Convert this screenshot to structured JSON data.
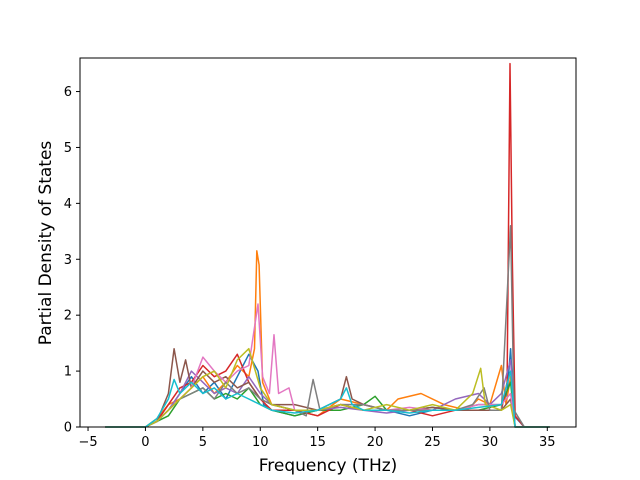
{
  "chart_data": {
    "type": "line",
    "title": "",
    "xlabel": "Frequency (THz)",
    "ylabel": "Partial Density of States",
    "xlim": [
      -5.7,
      37.5
    ],
    "ylim": [
      0,
      6.6
    ],
    "xticks": [
      -5,
      0,
      5,
      10,
      15,
      20,
      25,
      30,
      35
    ],
    "yticks": [
      0,
      1,
      2,
      3,
      4,
      5,
      6
    ],
    "xtick_labels": [
      "−5",
      "0",
      "5",
      "10",
      "15",
      "20",
      "25",
      "30",
      "35"
    ],
    "ytick_labels": [
      "0",
      "1",
      "2",
      "3",
      "4",
      "5",
      "6"
    ],
    "grid": false,
    "legend": "none",
    "series": [
      {
        "color": "#1f77b4",
        "points": [
          [
            -3.5,
            0
          ],
          [
            0,
            0
          ],
          [
            1,
            0.1
          ],
          [
            2,
            0.3
          ],
          [
            3,
            0.6
          ],
          [
            4,
            0.9
          ],
          [
            5,
            0.6
          ],
          [
            6,
            0.8
          ],
          [
            7,
            0.5
          ],
          [
            8,
            0.9
          ],
          [
            9,
            1.3
          ],
          [
            9.8,
            1.0
          ],
          [
            10.3,
            0.4
          ],
          [
            11,
            0.3
          ],
          [
            13,
            0.2
          ],
          [
            15,
            0.3
          ],
          [
            17,
            0.4
          ],
          [
            19,
            0.3
          ],
          [
            21,
            0.3
          ],
          [
            23,
            0.2
          ],
          [
            25,
            0.3
          ],
          [
            27,
            0.3
          ],
          [
            29,
            0.4
          ],
          [
            31,
            0.4
          ],
          [
            31.5,
            0.6
          ],
          [
            31.8,
            1.4
          ],
          [
            32.1,
            0.2
          ],
          [
            33,
            0
          ],
          [
            35.2,
            0
          ]
        ]
      },
      {
        "color": "#ff7f0e",
        "points": [
          [
            -3.5,
            0
          ],
          [
            0,
            0
          ],
          [
            1,
            0.15
          ],
          [
            2,
            0.4
          ],
          [
            3,
            0.5
          ],
          [
            4,
            0.7
          ],
          [
            5,
            0.9
          ],
          [
            6,
            0.6
          ],
          [
            7,
            0.8
          ],
          [
            8,
            1.1
          ],
          [
            9,
            0.9
          ],
          [
            9.5,
            1.4
          ],
          [
            9.7,
            3.15
          ],
          [
            9.9,
            2.9
          ],
          [
            10.2,
            0.8
          ],
          [
            11,
            0.4
          ],
          [
            13,
            0.3
          ],
          [
            15,
            0.2
          ],
          [
            17,
            0.5
          ],
          [
            19,
            0.4
          ],
          [
            21,
            0.3
          ],
          [
            22,
            0.5
          ],
          [
            24,
            0.6
          ],
          [
            26,
            0.4
          ],
          [
            28,
            0.3
          ],
          [
            29,
            0.5
          ],
          [
            30,
            0.4
          ],
          [
            31,
            1.1
          ],
          [
            31.4,
            0.4
          ],
          [
            31.8,
            0.9
          ],
          [
            32.2,
            0
          ],
          [
            33,
            0
          ],
          [
            35.2,
            0
          ]
        ]
      },
      {
        "color": "#2ca02c",
        "points": [
          [
            -3.5,
            0
          ],
          [
            0,
            0
          ],
          [
            1,
            0.1
          ],
          [
            2,
            0.2
          ],
          [
            3,
            0.5
          ],
          [
            4,
            0.6
          ],
          [
            5,
            0.7
          ],
          [
            6,
            0.5
          ],
          [
            7,
            0.6
          ],
          [
            8,
            0.5
          ],
          [
            9,
            0.7
          ],
          [
            10,
            0.4
          ],
          [
            11,
            0.3
          ],
          [
            13,
            0.2
          ],
          [
            15,
            0.3
          ],
          [
            17,
            0.3
          ],
          [
            19,
            0.4
          ],
          [
            20,
            0.55
          ],
          [
            21,
            0.3
          ],
          [
            23,
            0.3
          ],
          [
            25,
            0.35
          ],
          [
            27,
            0.3
          ],
          [
            29,
            0.3
          ],
          [
            31,
            0.4
          ],
          [
            31.8,
            0.8
          ],
          [
            32.2,
            0
          ],
          [
            35.2,
            0
          ]
        ]
      },
      {
        "color": "#d62728",
        "points": [
          [
            -3.5,
            0
          ],
          [
            0,
            0
          ],
          [
            1,
            0.1
          ],
          [
            2,
            0.4
          ],
          [
            3,
            0.7
          ],
          [
            4,
            0.8
          ],
          [
            5,
            1.1
          ],
          [
            6,
            0.9
          ],
          [
            7,
            1.0
          ],
          [
            8,
            1.3
          ],
          [
            9,
            0.8
          ],
          [
            10,
            0.5
          ],
          [
            11,
            0.3
          ],
          [
            13,
            0.3
          ],
          [
            15,
            0.2
          ],
          [
            17,
            0.4
          ],
          [
            19,
            0.3
          ],
          [
            21,
            0.3
          ],
          [
            23,
            0.3
          ],
          [
            25,
            0.2
          ],
          [
            27,
            0.3
          ],
          [
            29,
            0.3
          ],
          [
            31,
            0.3
          ],
          [
            31.5,
            0.8
          ],
          [
            31.75,
            6.5
          ],
          [
            31.95,
            3.0
          ],
          [
            32.2,
            0.2
          ],
          [
            33,
            0
          ],
          [
            35.2,
            0
          ]
        ]
      },
      {
        "color": "#9467bd",
        "points": [
          [
            -3.5,
            0
          ],
          [
            0,
            0
          ],
          [
            1,
            0.1
          ],
          [
            2,
            0.3
          ],
          [
            3,
            0.6
          ],
          [
            4,
            1.0
          ],
          [
            5,
            0.8
          ],
          [
            6,
            0.6
          ],
          [
            7,
            0.7
          ],
          [
            8,
            0.6
          ],
          [
            9,
            0.9
          ],
          [
            10,
            0.6
          ],
          [
            11,
            0.4
          ],
          [
            13,
            0.3
          ],
          [
            15,
            0.3
          ],
          [
            17,
            0.35
          ],
          [
            19,
            0.3
          ],
          [
            21,
            0.25
          ],
          [
            23,
            0.3
          ],
          [
            25,
            0.3
          ],
          [
            27,
            0.5
          ],
          [
            29,
            0.6
          ],
          [
            30,
            0.4
          ],
          [
            31,
            0.6
          ],
          [
            31.8,
            1.2
          ],
          [
            32.2,
            0
          ],
          [
            35.2,
            0
          ]
        ]
      },
      {
        "color": "#8c564b",
        "points": [
          [
            -3.5,
            0
          ],
          [
            0,
            0
          ],
          [
            1,
            0.1
          ],
          [
            2,
            0.6
          ],
          [
            2.5,
            1.4
          ],
          [
            3,
            0.8
          ],
          [
            3.5,
            1.2
          ],
          [
            4,
            0.7
          ],
          [
            5,
            1.0
          ],
          [
            6,
            0.8
          ],
          [
            7,
            0.9
          ],
          [
            8,
            0.7
          ],
          [
            9,
            0.8
          ],
          [
            10,
            0.5
          ],
          [
            11,
            0.4
          ],
          [
            13,
            0.4
          ],
          [
            15,
            0.3
          ],
          [
            17,
            0.5
          ],
          [
            17.5,
            0.9
          ],
          [
            18,
            0.5
          ],
          [
            19,
            0.4
          ],
          [
            21,
            0.3
          ],
          [
            23,
            0.3
          ],
          [
            25,
            0.35
          ],
          [
            27,
            0.3
          ],
          [
            29,
            0.3
          ],
          [
            31,
            0.3
          ],
          [
            31.8,
            0.5
          ],
          [
            32.2,
            0
          ],
          [
            35.2,
            0
          ]
        ]
      },
      {
        "color": "#e377c2",
        "points": [
          [
            -3.5,
            0
          ],
          [
            0,
            0
          ],
          [
            1,
            0.1
          ],
          [
            2,
            0.3
          ],
          [
            3,
            0.5
          ],
          [
            4,
            0.7
          ],
          [
            5,
            1.25
          ],
          [
            6,
            1.0
          ],
          [
            7,
            0.8
          ],
          [
            8,
            1.0
          ],
          [
            9,
            1.1
          ],
          [
            9.8,
            2.2
          ],
          [
            10.2,
            0.9
          ],
          [
            10.8,
            0.6
          ],
          [
            11.2,
            1.65
          ],
          [
            11.6,
            0.6
          ],
          [
            12.5,
            0.7
          ],
          [
            13,
            0.3
          ],
          [
            15,
            0.3
          ],
          [
            17,
            0.4
          ],
          [
            19,
            0.4
          ],
          [
            21,
            0.3
          ],
          [
            23,
            0.35
          ],
          [
            25,
            0.3
          ],
          [
            27,
            0.3
          ],
          [
            29,
            0.4
          ],
          [
            31,
            0.4
          ],
          [
            31.8,
            0.6
          ],
          [
            32.2,
            0
          ],
          [
            35.2,
            0
          ]
        ]
      },
      {
        "color": "#7f7f7f",
        "points": [
          [
            -3.5,
            0
          ],
          [
            0,
            0
          ],
          [
            1,
            0.1
          ],
          [
            2,
            0.3
          ],
          [
            3,
            0.5
          ],
          [
            4,
            0.6
          ],
          [
            5,
            0.7
          ],
          [
            6,
            0.5
          ],
          [
            7,
            0.8
          ],
          [
            8,
            0.6
          ],
          [
            9,
            0.7
          ],
          [
            10,
            0.5
          ],
          [
            11,
            0.4
          ],
          [
            13,
            0.3
          ],
          [
            14,
            0.2
          ],
          [
            14.6,
            0.85
          ],
          [
            15.2,
            0.3
          ],
          [
            17,
            0.4
          ],
          [
            19,
            0.4
          ],
          [
            21,
            0.3
          ],
          [
            23,
            0.3
          ],
          [
            25,
            0.3
          ],
          [
            27,
            0.3
          ],
          [
            28.5,
            0.4
          ],
          [
            29.5,
            0.7
          ],
          [
            30,
            0.3
          ],
          [
            31,
            0.3
          ],
          [
            31.8,
            3.6
          ],
          [
            32.1,
            0.3
          ],
          [
            33,
            0
          ],
          [
            35.2,
            0
          ]
        ]
      },
      {
        "color": "#bcbd22",
        "points": [
          [
            -3.5,
            0
          ],
          [
            0,
            0
          ],
          [
            1,
            0.1
          ],
          [
            2,
            0.3
          ],
          [
            3,
            0.5
          ],
          [
            4,
            0.7
          ],
          [
            5,
            0.9
          ],
          [
            6,
            1.0
          ],
          [
            7,
            0.7
          ],
          [
            8,
            1.2
          ],
          [
            9,
            1.4
          ],
          [
            10,
            0.7
          ],
          [
            11,
            0.4
          ],
          [
            13,
            0.3
          ],
          [
            15,
            0.3
          ],
          [
            17,
            0.4
          ],
          [
            19,
            0.3
          ],
          [
            21,
            0.4
          ],
          [
            23,
            0.3
          ],
          [
            25,
            0.4
          ],
          [
            27,
            0.3
          ],
          [
            28.5,
            0.6
          ],
          [
            29.2,
            1.05
          ],
          [
            29.6,
            0.4
          ],
          [
            31,
            0.3
          ],
          [
            31.8,
            0.4
          ],
          [
            32.2,
            0
          ],
          [
            35.2,
            0
          ]
        ]
      },
      {
        "color": "#17becf",
        "points": [
          [
            -3.5,
            0
          ],
          [
            0,
            0
          ],
          [
            1,
            0.15
          ],
          [
            2,
            0.5
          ],
          [
            2.5,
            0.85
          ],
          [
            3,
            0.6
          ],
          [
            4,
            0.8
          ],
          [
            5,
            0.6
          ],
          [
            6,
            0.7
          ],
          [
            7,
            0.5
          ],
          [
            8,
            0.6
          ],
          [
            9,
            0.5
          ],
          [
            10,
            0.4
          ],
          [
            11,
            0.3
          ],
          [
            13,
            0.25
          ],
          [
            15,
            0.3
          ],
          [
            17,
            0.5
          ],
          [
            17.5,
            0.7
          ],
          [
            18,
            0.4
          ],
          [
            19,
            0.3
          ],
          [
            21,
            0.3
          ],
          [
            23,
            0.25
          ],
          [
            25,
            0.3
          ],
          [
            27,
            0.3
          ],
          [
            29,
            0.35
          ],
          [
            31,
            0.4
          ],
          [
            31.8,
            1.0
          ],
          [
            32.2,
            0
          ],
          [
            35.2,
            0
          ]
        ]
      }
    ]
  }
}
